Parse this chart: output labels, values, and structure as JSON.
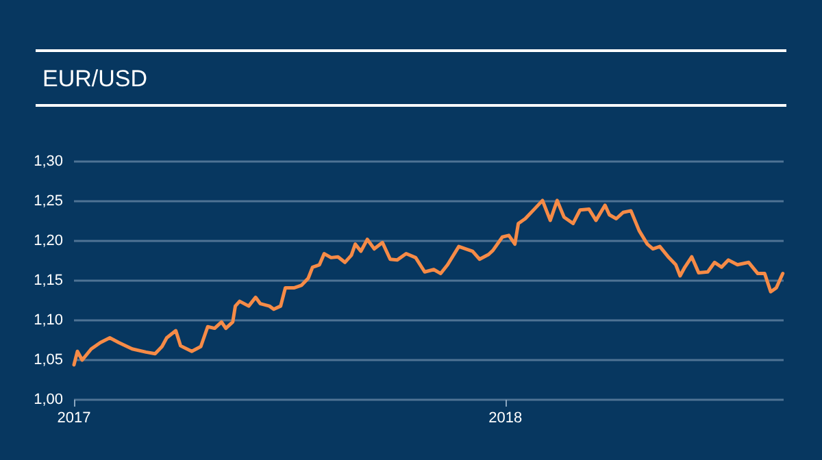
{
  "chart_data": {
    "type": "line",
    "title": "EUR/USD",
    "x": [
      2017.0,
      2017.008,
      2017.019,
      2017.04,
      2017.061,
      2017.083,
      2017.104,
      2017.135,
      2017.167,
      2017.188,
      2017.204,
      2017.215,
      2017.236,
      2017.247,
      2017.273,
      2017.294,
      2017.31,
      2017.326,
      2017.342,
      2017.352,
      2017.368,
      2017.374,
      2017.384,
      2017.405,
      2017.421,
      2017.432,
      2017.453,
      2017.463,
      2017.479,
      2017.49,
      2017.511,
      2017.527,
      2017.543,
      2017.553,
      2017.569,
      2017.58,
      2017.596,
      2017.612,
      2017.628,
      2017.643,
      2017.652,
      2017.665,
      2017.68,
      2017.696,
      2017.715,
      2017.733,
      2017.749,
      2017.77,
      2017.792,
      2017.813,
      2017.834,
      2017.85,
      2017.866,
      2017.892,
      2017.908,
      2017.924,
      2017.94,
      2017.961,
      2017.971,
      2017.993,
      2018.008,
      2018.022,
      2018.03,
      2018.046,
      2018.067,
      2018.086,
      2018.104,
      2018.12,
      2018.136,
      2018.157,
      2018.173,
      2018.194,
      2018.21,
      2018.231,
      2018.241,
      2018.257,
      2018.273,
      2018.291,
      2018.31,
      2018.329,
      2018.342,
      2018.358,
      2018.379,
      2018.395,
      2018.405,
      2018.416,
      2018.432,
      2018.448,
      2018.469,
      2018.485,
      2018.501,
      2018.517,
      2018.538,
      2018.564,
      2018.585,
      2018.601,
      2018.615,
      2018.628,
      2018.643
    ],
    "series": [
      {
        "color": "#f68b47",
        "values": [
          1.044,
          1.061,
          1.05,
          1.064,
          1.072,
          1.078,
          1.072,
          1.064,
          1.06,
          1.058,
          1.067,
          1.078,
          1.087,
          1.068,
          1.061,
          1.067,
          1.092,
          1.09,
          1.098,
          1.09,
          1.098,
          1.118,
          1.124,
          1.118,
          1.129,
          1.121,
          1.118,
          1.114,
          1.118,
          1.141,
          1.141,
          1.144,
          1.153,
          1.167,
          1.17,
          1.184,
          1.179,
          1.18,
          1.173,
          1.182,
          1.196,
          1.187,
          1.202,
          1.19,
          1.198,
          1.177,
          1.176,
          1.184,
          1.179,
          1.161,
          1.164,
          1.159,
          1.17,
          1.193,
          1.19,
          1.187,
          1.177,
          1.183,
          1.188,
          1.205,
          1.207,
          1.196,
          1.222,
          1.228,
          1.24,
          1.251,
          1.226,
          1.251,
          1.23,
          1.222,
          1.239,
          1.24,
          1.226,
          1.245,
          1.233,
          1.228,
          1.236,
          1.238,
          1.213,
          1.196,
          1.19,
          1.193,
          1.179,
          1.17,
          1.156,
          1.167,
          1.18,
          1.16,
          1.161,
          1.173,
          1.167,
          1.176,
          1.17,
          1.173,
          1.159,
          1.159,
          1.136,
          1.141,
          1.159
        ]
      }
    ],
    "xlim": [
      2017,
      2018.645
    ],
    "xticks": [
      2017,
      2018
    ],
    "ylim": [
      1.0,
      1.3
    ],
    "yticks": [
      {
        "value": 1.0,
        "label": "1,00"
      },
      {
        "value": 1.05,
        "label": "1,05"
      },
      {
        "value": 1.1,
        "label": "1,10"
      },
      {
        "value": 1.15,
        "label": "1,15"
      },
      {
        "value": 1.2,
        "label": "1,20"
      },
      {
        "value": 1.25,
        "label": "1,25"
      },
      {
        "value": 1.3,
        "label": "1,30"
      }
    ],
    "grid": "y",
    "marker": "none",
    "line_style": "solid"
  }
}
